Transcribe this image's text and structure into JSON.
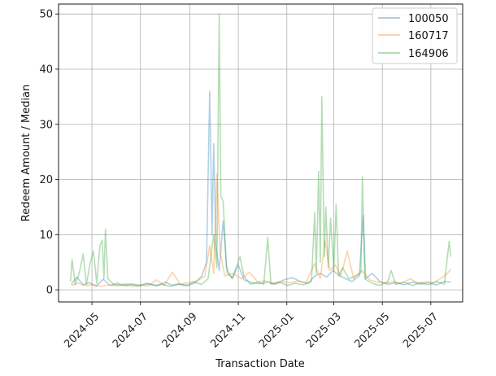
{
  "chart_data": {
    "type": "line",
    "xlabel": "Transaction Date",
    "ylabel": "Redeem Amount / Median",
    "x_range": [
      "2024-03-20",
      "2025-08-10"
    ],
    "ylim": [
      -2.2,
      51.8
    ],
    "grid": true,
    "legend_position": "top-right",
    "x_ticks": [
      "2024-05",
      "2024-07",
      "2024-09",
      "2024-11",
      "2025-01",
      "2025-03",
      "2025-05",
      "2025-07"
    ],
    "x_tick_dates": [
      "2024-05-01",
      "2024-07-01",
      "2024-09-01",
      "2024-11-01",
      "2025-01-01",
      "2025-03-01",
      "2025-05-01",
      "2025-07-01"
    ],
    "y_ticks": [
      0,
      10,
      20,
      30,
      40,
      50
    ],
    "series": [
      {
        "name": "100050",
        "color": "#1f77b4",
        "opacity": 0.35,
        "points": [
          [
            "2024-04-05",
            1.0
          ],
          [
            "2024-04-12",
            2.3
          ],
          [
            "2024-04-20",
            0.9
          ],
          [
            "2024-04-28",
            1.3
          ],
          [
            "2024-05-06",
            0.6
          ],
          [
            "2024-05-15",
            1.9
          ],
          [
            "2024-05-24",
            0.8
          ],
          [
            "2024-06-02",
            1.2
          ],
          [
            "2024-06-12",
            0.7
          ],
          [
            "2024-06-22",
            1.0
          ],
          [
            "2024-07-02",
            0.8
          ],
          [
            "2024-07-12",
            1.1
          ],
          [
            "2024-07-22",
            0.7
          ],
          [
            "2024-08-01",
            1.4
          ],
          [
            "2024-08-10",
            0.8
          ],
          [
            "2024-08-20",
            1.0
          ],
          [
            "2024-08-30",
            0.8
          ],
          [
            "2024-09-08",
            1.3
          ],
          [
            "2024-09-16",
            2.5
          ],
          [
            "2024-09-22",
            5.0
          ],
          [
            "2024-09-26",
            36.0
          ],
          [
            "2024-09-29",
            10.0
          ],
          [
            "2024-10-01",
            26.5
          ],
          [
            "2024-10-04",
            8.0
          ],
          [
            "2024-10-08",
            3.5
          ],
          [
            "2024-10-13",
            12.5
          ],
          [
            "2024-10-18",
            3.0
          ],
          [
            "2024-10-25",
            2.2
          ],
          [
            "2024-11-01",
            4.5
          ],
          [
            "2024-11-08",
            1.8
          ],
          [
            "2024-11-18",
            1.3
          ],
          [
            "2024-11-28",
            1.1
          ],
          [
            "2024-12-08",
            1.4
          ],
          [
            "2024-12-18",
            1.0
          ],
          [
            "2024-12-28",
            1.8
          ],
          [
            "2025-01-08",
            2.2
          ],
          [
            "2025-01-18",
            1.5
          ],
          [
            "2025-01-28",
            1.2
          ],
          [
            "2025-02-05",
            2.5
          ],
          [
            "2025-02-12",
            3.0
          ],
          [
            "2025-02-20",
            2.3
          ],
          [
            "2025-02-28",
            3.5
          ],
          [
            "2025-03-08",
            2.6
          ],
          [
            "2025-03-16",
            2.0
          ],
          [
            "2025-03-24",
            1.5
          ],
          [
            "2025-04-02",
            2.5
          ],
          [
            "2025-04-07",
            13.5
          ],
          [
            "2025-04-10",
            2.0
          ],
          [
            "2025-04-18",
            3.0
          ],
          [
            "2025-04-28",
            1.5
          ],
          [
            "2025-05-08",
            1.0
          ],
          [
            "2025-05-18",
            1.3
          ],
          [
            "2025-05-28",
            0.9
          ],
          [
            "2025-06-08",
            1.4
          ],
          [
            "2025-06-18",
            1.0
          ],
          [
            "2025-06-28",
            1.3
          ],
          [
            "2025-07-08",
            0.9
          ],
          [
            "2025-07-18",
            1.5
          ],
          [
            "2025-07-26",
            1.4
          ]
        ]
      },
      {
        "name": "160717",
        "color": "#ff7f0e",
        "opacity": 0.35,
        "points": [
          [
            "2024-04-05",
            0.8
          ],
          [
            "2024-04-14",
            1.2
          ],
          [
            "2024-04-23",
            0.7
          ],
          [
            "2024-05-02",
            1.0
          ],
          [
            "2024-05-12",
            0.6
          ],
          [
            "2024-05-22",
            0.9
          ],
          [
            "2024-06-01",
            0.7
          ],
          [
            "2024-06-11",
            1.1
          ],
          [
            "2024-06-21",
            0.6
          ],
          [
            "2024-07-01",
            0.9
          ],
          [
            "2024-07-11",
            0.7
          ],
          [
            "2024-07-21",
            1.8
          ],
          [
            "2024-07-31",
            0.8
          ],
          [
            "2024-08-10",
            3.2
          ],
          [
            "2024-08-20",
            1.0
          ],
          [
            "2024-08-30",
            1.3
          ],
          [
            "2024-09-10",
            1.6
          ],
          [
            "2024-09-20",
            2.5
          ],
          [
            "2024-09-26",
            8.0
          ],
          [
            "2024-10-01",
            3.0
          ],
          [
            "2024-10-05",
            21.0
          ],
          [
            "2024-10-09",
            7.0
          ],
          [
            "2024-10-15",
            2.5
          ],
          [
            "2024-10-25",
            3.0
          ],
          [
            "2024-11-05",
            2.0
          ],
          [
            "2024-11-15",
            3.2
          ],
          [
            "2024-11-25",
            1.5
          ],
          [
            "2024-12-05",
            1.6
          ],
          [
            "2024-12-15",
            1.2
          ],
          [
            "2024-12-25",
            1.5
          ],
          [
            "2025-01-05",
            1.3
          ],
          [
            "2025-01-15",
            1.6
          ],
          [
            "2025-01-25",
            1.2
          ],
          [
            "2025-02-05",
            4.8
          ],
          [
            "2025-02-12",
            2.0
          ],
          [
            "2025-02-18",
            9.0
          ],
          [
            "2025-02-24",
            3.5
          ],
          [
            "2025-03-03",
            4.5
          ],
          [
            "2025-03-10",
            2.5
          ],
          [
            "2025-03-18",
            7.0
          ],
          [
            "2025-03-26",
            2.0
          ],
          [
            "2025-04-05",
            3.5
          ],
          [
            "2025-04-15",
            1.8
          ],
          [
            "2025-04-25",
            1.4
          ],
          [
            "2025-05-05",
            1.2
          ],
          [
            "2025-05-15",
            1.5
          ],
          [
            "2025-05-25",
            1.1
          ],
          [
            "2025-06-05",
            2.0
          ],
          [
            "2025-06-15",
            1.2
          ],
          [
            "2025-06-25",
            1.5
          ],
          [
            "2025-07-05",
            1.3
          ],
          [
            "2025-07-15",
            2.2
          ],
          [
            "2025-07-22",
            3.0
          ],
          [
            "2025-07-26",
            3.7
          ]
        ]
      },
      {
        "name": "164906",
        "color": "#2ca02c",
        "opacity": 0.35,
        "points": [
          [
            "2024-04-04",
            1.5
          ],
          [
            "2024-04-06",
            5.5
          ],
          [
            "2024-04-10",
            1.0
          ],
          [
            "2024-04-15",
            3.0
          ],
          [
            "2024-04-20",
            6.5
          ],
          [
            "2024-04-24",
            1.0
          ],
          [
            "2024-04-29",
            5.0
          ],
          [
            "2024-05-03",
            7.0
          ],
          [
            "2024-05-07",
            1.2
          ],
          [
            "2024-05-11",
            8.0
          ],
          [
            "2024-05-14",
            9.0
          ],
          [
            "2024-05-16",
            2.0
          ],
          [
            "2024-05-18",
            11.0
          ],
          [
            "2024-05-21",
            2.0
          ],
          [
            "2024-05-28",
            1.0
          ],
          [
            "2024-06-08",
            0.8
          ],
          [
            "2024-06-18",
            1.1
          ],
          [
            "2024-06-28",
            0.6
          ],
          [
            "2024-07-08",
            1.2
          ],
          [
            "2024-07-18",
            0.8
          ],
          [
            "2024-07-28",
            1.0
          ],
          [
            "2024-08-07",
            0.6
          ],
          [
            "2024-08-17",
            1.1
          ],
          [
            "2024-08-27",
            0.7
          ],
          [
            "2024-09-06",
            1.4
          ],
          [
            "2024-09-16",
            1.0
          ],
          [
            "2024-09-24",
            2.0
          ],
          [
            "2024-10-01",
            10.0
          ],
          [
            "2024-10-05",
            4.0
          ],
          [
            "2024-10-08",
            50.0
          ],
          [
            "2024-10-10",
            17.0
          ],
          [
            "2024-10-13",
            16.0
          ],
          [
            "2024-10-17",
            4.0
          ],
          [
            "2024-10-24",
            2.0
          ],
          [
            "2024-11-03",
            6.0
          ],
          [
            "2024-11-08",
            2.5
          ],
          [
            "2024-11-16",
            1.0
          ],
          [
            "2024-11-26",
            1.4
          ],
          [
            "2024-12-03",
            1.0
          ],
          [
            "2024-12-08",
            9.5
          ],
          [
            "2024-12-12",
            1.0
          ],
          [
            "2024-12-22",
            1.4
          ],
          [
            "2025-01-02",
            0.8
          ],
          [
            "2025-01-12",
            1.2
          ],
          [
            "2025-01-22",
            0.9
          ],
          [
            "2025-02-01",
            1.5
          ],
          [
            "2025-02-05",
            14.0
          ],
          [
            "2025-02-07",
            3.0
          ],
          [
            "2025-02-10",
            21.5
          ],
          [
            "2025-02-12",
            5.0
          ],
          [
            "2025-02-14",
            35.0
          ],
          [
            "2025-02-17",
            6.0
          ],
          [
            "2025-02-19",
            15.0
          ],
          [
            "2025-02-22",
            4.0
          ],
          [
            "2025-02-25",
            13.0
          ],
          [
            "2025-03-01",
            3.5
          ],
          [
            "2025-03-04",
            15.5
          ],
          [
            "2025-03-07",
            2.5
          ],
          [
            "2025-03-12",
            4.0
          ],
          [
            "2025-03-20",
            2.0
          ],
          [
            "2025-03-28",
            2.5
          ],
          [
            "2025-04-04",
            3.0
          ],
          [
            "2025-04-06",
            20.5
          ],
          [
            "2025-04-09",
            2.0
          ],
          [
            "2025-04-18",
            1.2
          ],
          [
            "2025-04-28",
            0.8
          ],
          [
            "2025-05-08",
            1.5
          ],
          [
            "2025-05-12",
            3.5
          ],
          [
            "2025-05-18",
            1.0
          ],
          [
            "2025-05-28",
            1.4
          ],
          [
            "2025-06-08",
            0.8
          ],
          [
            "2025-06-18",
            1.3
          ],
          [
            "2025-06-28",
            0.9
          ],
          [
            "2025-07-08",
            1.5
          ],
          [
            "2025-07-18",
            1.0
          ],
          [
            "2025-07-24",
            8.8
          ],
          [
            "2025-07-26",
            6.0
          ]
        ]
      }
    ]
  }
}
